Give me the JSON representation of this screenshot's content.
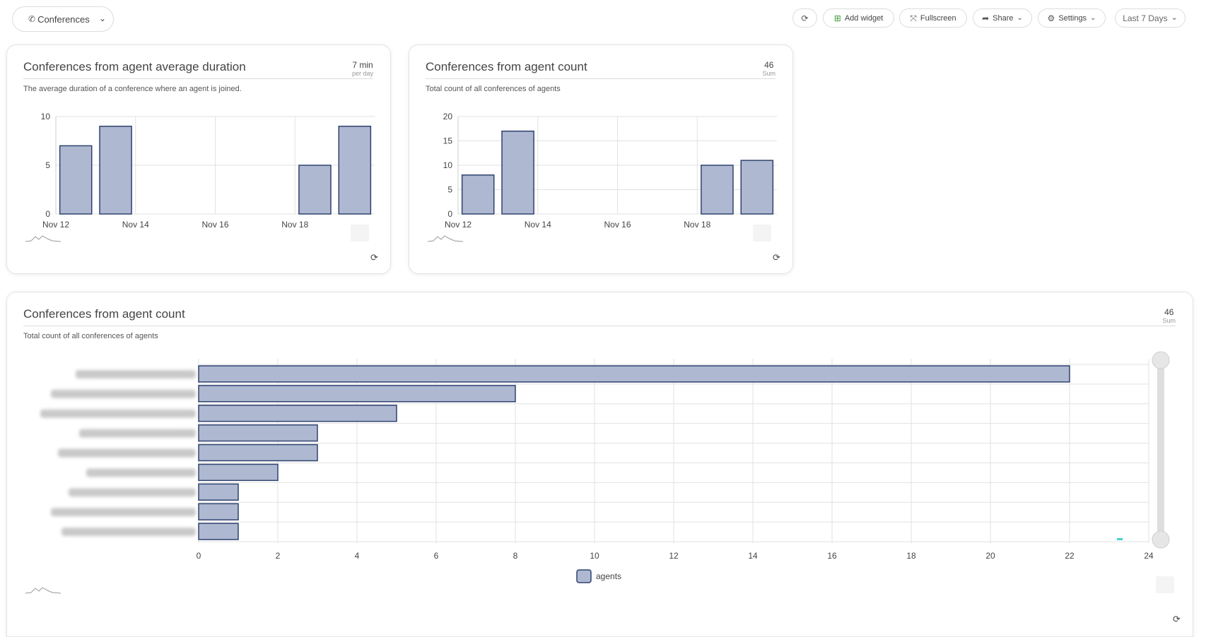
{
  "toolbar": {
    "dashboard_name": "Conferences",
    "add_widget": "Add widget",
    "fullscreen": "Fullscreen",
    "share": "Share",
    "settings": "Settings",
    "date_range": "Last 7 Days"
  },
  "widgets": [
    {
      "title": "Conferences from agent average duration",
      "metric_value": "7 min",
      "metric_unit": "per day",
      "description": "The average duration of a conference where an agent is joined."
    },
    {
      "title": "Conferences from agent count",
      "metric_value": "46",
      "metric_unit": "Sum",
      "description": "Total count of all conferences of agents"
    },
    {
      "title": "Conferences from agent count",
      "metric_value": "46",
      "metric_unit": "Sum",
      "description": "Total count of all conferences of agents",
      "legend_label": "agents"
    }
  ],
  "colors": {
    "bar_fill": "#aeb8d0",
    "bar_stroke": "#2f4270",
    "grid": "#e2e2e2"
  },
  "chart_data": [
    {
      "type": "bar",
      "title": "Conferences from agent average duration",
      "x": [
        "Nov 12",
        "Nov 13",
        "Nov 14",
        "Nov 15",
        "Nov 16",
        "Nov 17",
        "Nov 18",
        "Nov 19"
      ],
      "values": [
        7,
        9,
        null,
        null,
        null,
        null,
        5,
        9
      ],
      "x_tick_labels": [
        "Nov 12",
        "Nov 14",
        "Nov 16",
        "Nov 18"
      ],
      "y_tick_labels": [
        "0",
        "5",
        "10"
      ],
      "ylim": [
        0,
        10
      ],
      "grid": true
    },
    {
      "type": "bar",
      "title": "Conferences from agent count",
      "x": [
        "Nov 12",
        "Nov 13",
        "Nov 14",
        "Nov 15",
        "Nov 16",
        "Nov 17",
        "Nov 18",
        "Nov 19"
      ],
      "values": [
        8,
        17,
        null,
        null,
        null,
        null,
        10,
        11
      ],
      "x_tick_labels": [
        "Nov 12",
        "Nov 14",
        "Nov 16",
        "Nov 18"
      ],
      "y_tick_labels": [
        "0",
        "5",
        "10",
        "15",
        "20"
      ],
      "ylim": [
        0,
        20
      ],
      "grid": true
    },
    {
      "type": "bar",
      "orientation": "horizontal",
      "title": "Conferences from agent count",
      "series": [
        {
          "name": "agents",
          "values": [
            22,
            8,
            5,
            3,
            3,
            2,
            1,
            1,
            1
          ]
        }
      ],
      "x_tick_labels": [
        "0",
        "2",
        "4",
        "6",
        "8",
        "10",
        "12",
        "14",
        "16",
        "18",
        "20",
        "22",
        "24"
      ],
      "xlim": [
        0,
        24
      ],
      "legend": "bottom-center",
      "grid": true
    }
  ]
}
